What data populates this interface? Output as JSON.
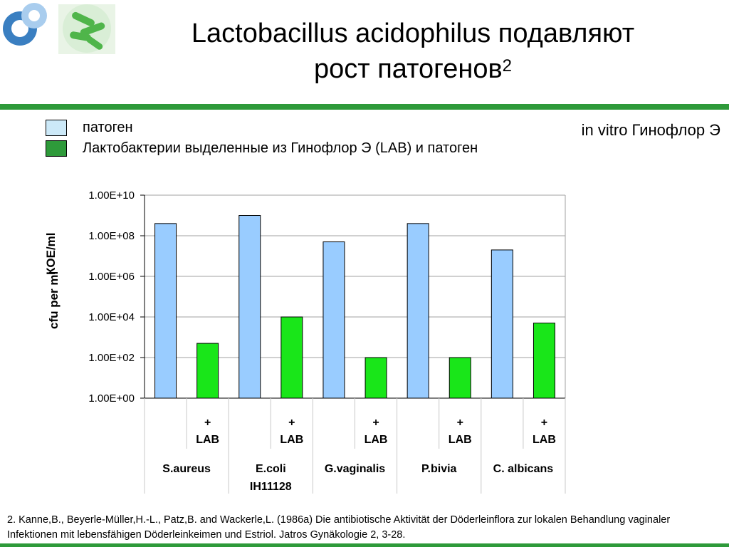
{
  "title": {
    "line1": "Lactobacillus acidophilus подавляют",
    "line2": "рост патогенов",
    "superscript": "2"
  },
  "context_label": "in vitro Гинофлор Э",
  "legend": {
    "items": [
      {
        "label": "патоген",
        "color": "#cce9f8"
      },
      {
        "label": "Лактобактерии выделенные из Гинофлор Э (LAB) и патоген",
        "color": "#2e9a3a"
      }
    ]
  },
  "colors": {
    "accent_green": "#2e9a3a",
    "bar_pathogen": "#99ccff",
    "bar_lab": "#19e619"
  },
  "chart_data": {
    "type": "bar",
    "yscale": "log",
    "ylabel": "cfu per ml",
    "ylabel_overlay": "КОЕ/ml",
    "ylim": [
      1,
      10000000000
    ],
    "y_ticks": [
      "1.00E+00",
      "1.00E+02",
      "1.00E+04",
      "1.00E+06",
      "1.00E+08",
      "1.00E+10"
    ],
    "groups": [
      {
        "name": "S.aureus",
        "name_line2": "",
        "pathogen": 400000000,
        "with_lab": 500
      },
      {
        "name": "E.coli",
        "name_line2": "IH11128",
        "pathogen": 1000000000,
        "with_lab": 10000
      },
      {
        "name": "G.vaginalis",
        "name_line2": "",
        "pathogen": 50000000,
        "with_lab": 100
      },
      {
        "name": "P.bivia",
        "name_line2": "",
        "pathogen": 400000000,
        "with_lab": 100
      },
      {
        "name": "C. albicans",
        "name_line2": "",
        "pathogen": 20000000,
        "with_lab": 5000
      }
    ],
    "sub_labels": {
      "pathogen": "",
      "with_lab_line1": "+",
      "with_lab_line2": "LAB"
    },
    "grid": true
  },
  "footnote": "2. Kanne,B., Beyerle-Müller,H.-L., Patz,B. and Wackerle,L. (1986a) Die antibiotische Aktivität der Döderleinflora zur lokalen Behandlung vaginaler Infektionen mit lebensfähigen Döderleinkeimen und Estriol. Jatros Gynäkologie 2, 3-28."
}
